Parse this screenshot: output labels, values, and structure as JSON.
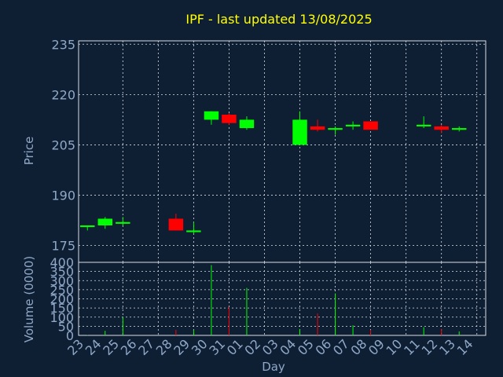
{
  "chart_data": [
    {
      "type": "candlestick",
      "title": "IPF - last updated 13/08/2025",
      "ylabel": "Price",
      "ylim": [
        170,
        236
      ],
      "yticks": [
        175,
        190,
        205,
        220,
        235
      ],
      "grid": true,
      "categories": [
        "23",
        "24",
        "25",
        "26",
        "27",
        "28",
        "29",
        "30",
        "31",
        "01",
        "02",
        "03",
        "04",
        "05",
        "06",
        "07",
        "08",
        "09",
        "10",
        "11",
        "12",
        "13",
        "14"
      ],
      "candles": [
        {
          "day": "23",
          "open": 180.5,
          "high": 181.0,
          "low": 179.5,
          "close": 181.0
        },
        {
          "day": "24",
          "open": 181.0,
          "high": 183.5,
          "low": 180.0,
          "close": 183.0
        },
        {
          "day": "25",
          "open": 181.5,
          "high": 183.5,
          "low": 181.0,
          "close": 182.0
        },
        {
          "day": "28",
          "open": 183.0,
          "high": 184.5,
          "low": 179.5,
          "close": 179.5
        },
        {
          "day": "29",
          "open": 179.0,
          "high": 182.0,
          "low": 178.5,
          "close": 179.5
        },
        {
          "day": "30",
          "open": 212.5,
          "high": 215.0,
          "low": 211.0,
          "close": 215.0
        },
        {
          "day": "31",
          "open": 214.0,
          "high": 214.5,
          "low": 211.0,
          "close": 211.5
        },
        {
          "day": "01",
          "open": 210.0,
          "high": 213.5,
          "low": 209.5,
          "close": 212.5
        },
        {
          "day": "04",
          "open": 205.0,
          "high": 215.0,
          "low": 205.0,
          "close": 212.5
        },
        {
          "day": "05",
          "open": 210.5,
          "high": 212.5,
          "low": 209.0,
          "close": 209.5
        },
        {
          "day": "06",
          "open": 209.5,
          "high": 210.5,
          "low": 208.0,
          "close": 210.0
        },
        {
          "day": "07",
          "open": 210.5,
          "high": 212.0,
          "low": 209.5,
          "close": 211.0
        },
        {
          "day": "08",
          "open": 212.0,
          "high": 212.0,
          "low": 209.5,
          "close": 209.5
        },
        {
          "day": "11",
          "open": 210.5,
          "high": 213.5,
          "low": 210.0,
          "close": 211.0
        },
        {
          "day": "12",
          "open": 210.5,
          "high": 211.0,
          "low": 208.5,
          "close": 209.5
        },
        {
          "day": "13",
          "open": 209.5,
          "high": 210.5,
          "low": 209.0,
          "close": 210.0
        }
      ]
    },
    {
      "type": "bar",
      "ylabel": "Volume (0000)",
      "xlabel": "Day",
      "ylim": [
        0,
        400
      ],
      "yticks": [
        0,
        50,
        100,
        150,
        200,
        250,
        300,
        350,
        400
      ],
      "grid": true,
      "categories": [
        "23",
        "24",
        "25",
        "26",
        "27",
        "28",
        "29",
        "30",
        "31",
        "01",
        "02",
        "03",
        "04",
        "05",
        "06",
        "07",
        "08",
        "09",
        "10",
        "11",
        "12",
        "13",
        "14"
      ],
      "bars": [
        {
          "day": "23",
          "value": 2,
          "up": true
        },
        {
          "day": "24",
          "value": 25,
          "up": true
        },
        {
          "day": "25",
          "value": 100,
          "up": true
        },
        {
          "day": "28",
          "value": 30,
          "up": false
        },
        {
          "day": "29",
          "value": 30,
          "up": true
        },
        {
          "day": "30",
          "value": 385,
          "up": true
        },
        {
          "day": "31",
          "value": 155,
          "up": false
        },
        {
          "day": "01",
          "value": 260,
          "up": true
        },
        {
          "day": "04",
          "value": 35,
          "up": true
        },
        {
          "day": "05",
          "value": 120,
          "up": false
        },
        {
          "day": "06",
          "value": 230,
          "up": true
        },
        {
          "day": "07",
          "value": 55,
          "up": true
        },
        {
          "day": "08",
          "value": 30,
          "up": false
        },
        {
          "day": "11",
          "value": 45,
          "up": true
        },
        {
          "day": "12",
          "value": 35,
          "up": false
        },
        {
          "day": "13",
          "value": 22,
          "up": true
        }
      ]
    }
  ],
  "colors": {
    "background": "#0f1f33",
    "title": "#ffff00",
    "axis_text": "#8fa8c8",
    "grid": "#d8dde6",
    "up": "#00ff00",
    "down": "#ff0000"
  }
}
